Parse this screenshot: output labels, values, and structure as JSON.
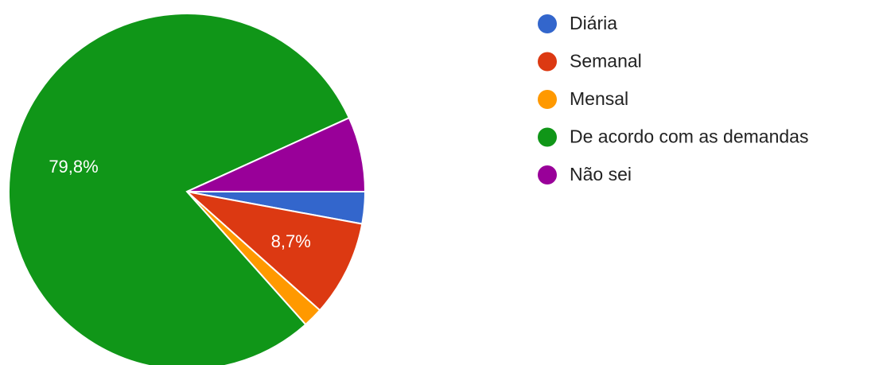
{
  "chart_data": {
    "type": "pie",
    "categories": [
      "Diária",
      "Semanal",
      "Mensal",
      "De acordo com as demandas",
      "Não sei"
    ],
    "values": [
      2.9,
      8.7,
      1.8,
      79.8,
      6.8
    ],
    "value_labels": [
      null,
      "8,7%",
      null,
      "79,8%",
      null
    ],
    "colors": [
      "#3366cc",
      "#dc3912",
      "#ff9900",
      "#109618",
      "#990099"
    ],
    "legend": "right"
  }
}
